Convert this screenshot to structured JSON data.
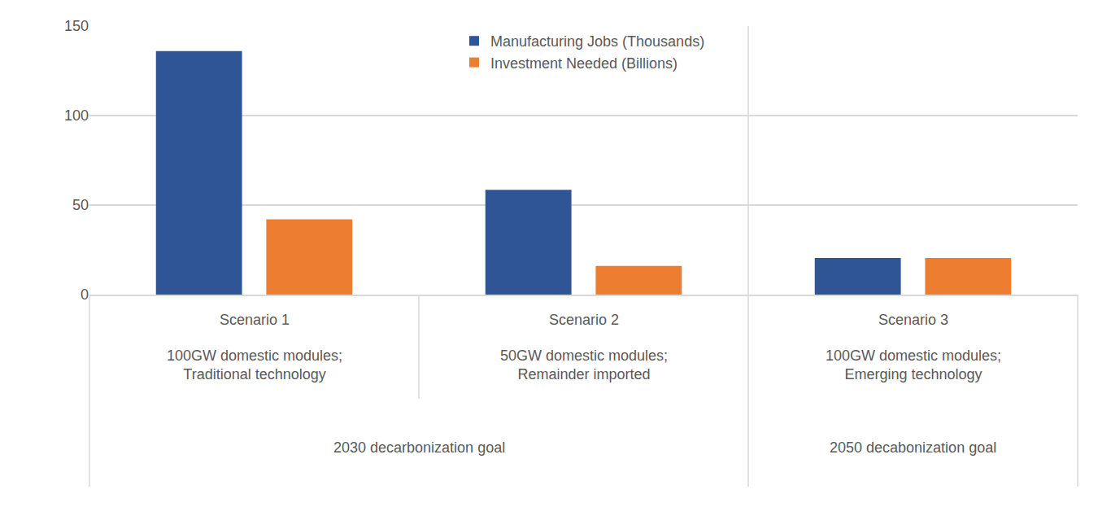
{
  "chart_data": {
    "type": "bar",
    "categories": [
      "Scenario 1",
      "Scenario 2",
      "Scenario 3"
    ],
    "category_descriptions": [
      [
        "100GW domestic modules;",
        "Traditional technology"
      ],
      [
        "50GW domestic modules;",
        "Remainder imported"
      ],
      [
        "100GW domestic modules;",
        "Emerging technology"
      ]
    ],
    "groups": [
      {
        "label": "2030 decarbonization goal",
        "categories": [
          "Scenario 1",
          "Scenario 2"
        ]
      },
      {
        "label": "2050 decabonization goal",
        "categories": [
          "Scenario 3"
        ]
      }
    ],
    "series": [
      {
        "name": "Manufacturing Jobs (Thousands)",
        "color": "#2f5597",
        "values": [
          136,
          58.5,
          20.5
        ]
      },
      {
        "name": "Investment Needed (Billions)",
        "color": "#ed7d31",
        "values": [
          42,
          16,
          20.5
        ]
      }
    ],
    "ylim": [
      0,
      150
    ],
    "yticks": [
      0,
      50,
      100,
      150
    ],
    "grid": true,
    "legend": "top"
  }
}
